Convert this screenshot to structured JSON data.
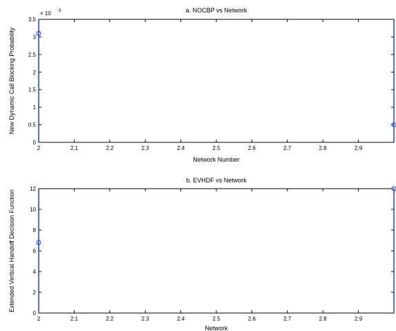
{
  "chart_data": [
    {
      "type": "line",
      "title": "a.  NOCBP vs Network",
      "xlabel": "Network Number",
      "ylabel": "New Dynamic Call Blocking Probability",
      "y_multiplier": "× 10",
      "y_exponent": "-3",
      "xlim": [
        2,
        3
      ],
      "ylim": [
        0,
        3.5
      ],
      "x_ticks": [
        "2",
        "2.1",
        "2.2",
        "2.3",
        "2.4",
        "2.5",
        "2.6",
        "2.7",
        "2.8",
        "2.9"
      ],
      "y_ticks": [
        "0",
        "0.5",
        "1",
        "1.5",
        "2",
        "2.5",
        "3",
        "3.5"
      ],
      "series": [
        {
          "x": [
            2,
            3
          ],
          "y": [
            3.1,
            0.5
          ],
          "color": "#1f3fd6",
          "marker": "circle"
        }
      ]
    },
    {
      "type": "line",
      "title": "b.  EVHDF vs Network",
      "xlabel": "Network",
      "ylabel": "Extended Vertical Handoff Decision Function",
      "xlim": [
        2,
        3
      ],
      "ylim": [
        0,
        12
      ],
      "x_ticks": [
        "2",
        "2.1",
        "2.2",
        "2.3",
        "2.4",
        "2.5",
        "2.6",
        "2.7",
        "2.8",
        "2.9"
      ],
      "y_ticks": [
        "0",
        "2",
        "4",
        "6",
        "8",
        "10",
        "12"
      ],
      "series": [
        {
          "x": [
            2,
            3
          ],
          "y": [
            6.8,
            12
          ],
          "color": "#1f3fd6",
          "marker": "circle"
        }
      ]
    }
  ]
}
